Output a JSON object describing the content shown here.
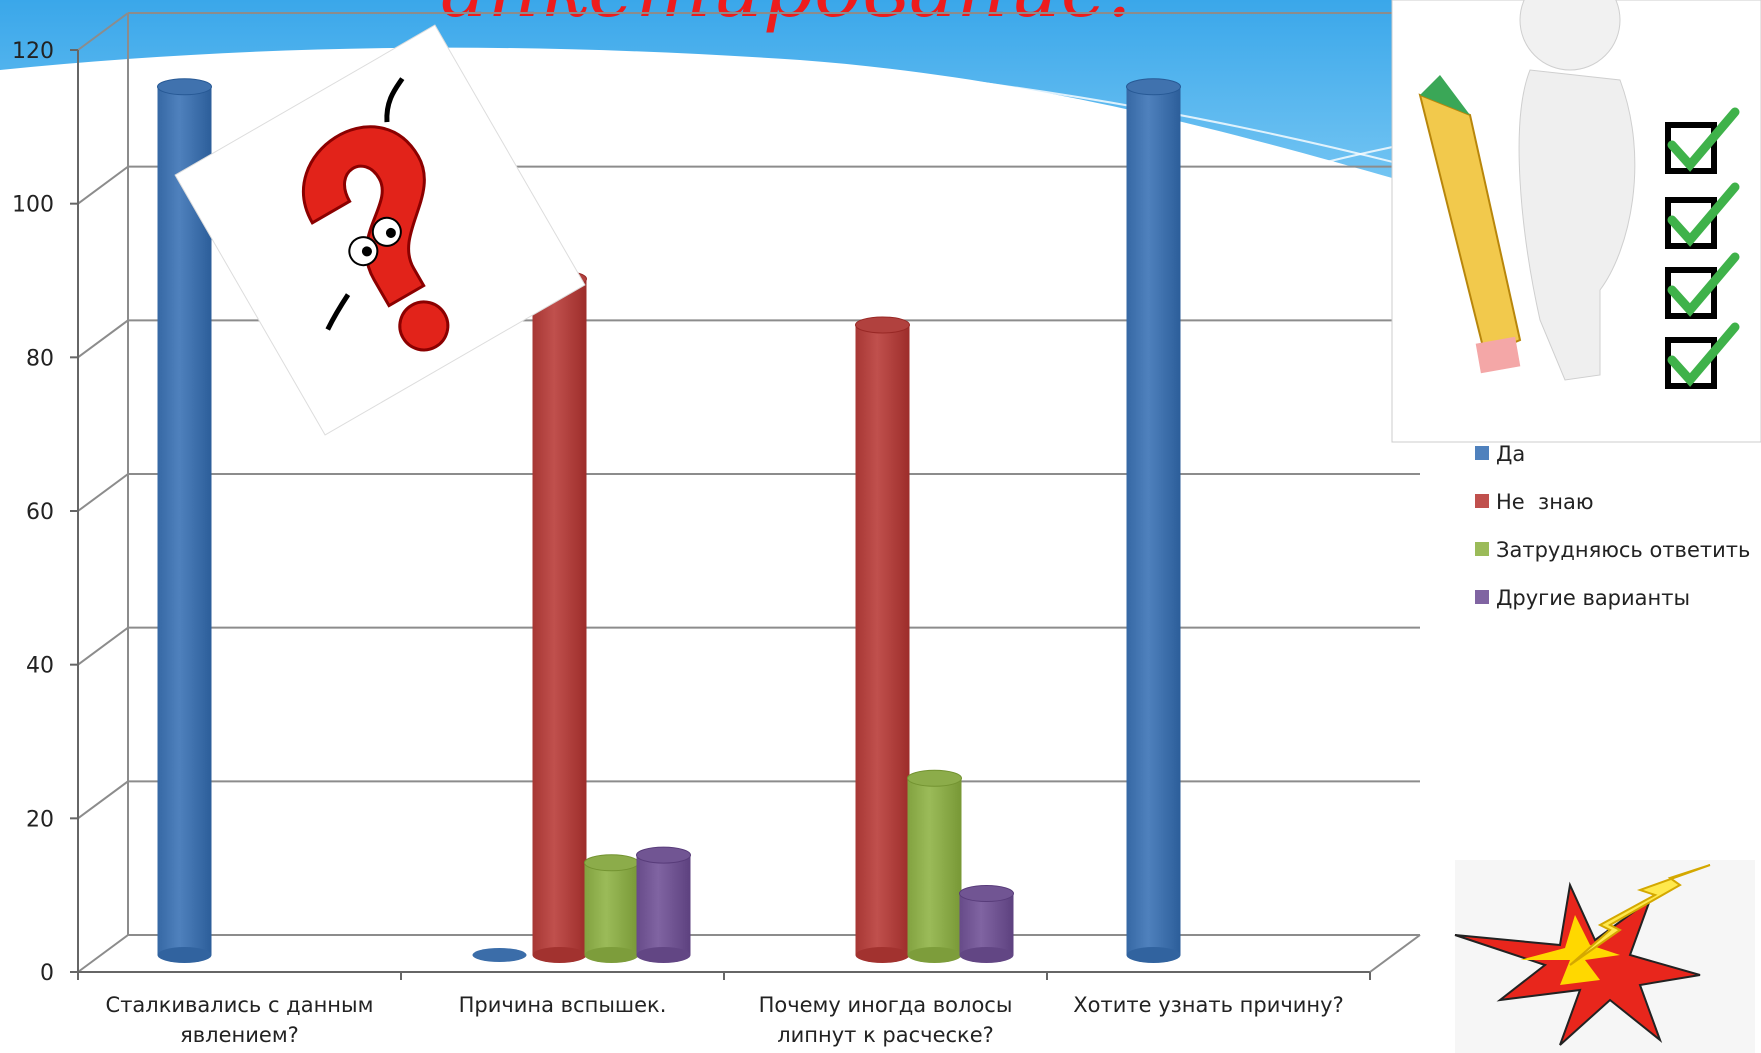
{
  "slide": {
    "title_fragment": "анкетирование:",
    "accent_color": "#ee1c1c",
    "background_wave_color": "#4fb4ee"
  },
  "decorations": {
    "question_mark_icon": "question-mark-character-icon",
    "checklist_figure_icon": "man-with-pencil-and-checklist-icon",
    "lightning_icon": "lightning-explosion-icon"
  },
  "chart_data": {
    "type": "bar",
    "style": "3d-cylinder",
    "categories": [
      [
        "Сталкивались с данным",
        "явлением?"
      ],
      [
        "Причина вспышек."
      ],
      [
        "Почему иногда волосы",
        "липнут к расческе?"
      ],
      [
        "Хотите узнать причину?"
      ]
    ],
    "series": [
      {
        "name": "Да",
        "color": "#4f81bd",
        "values": [
          113,
          0,
          0,
          113
        ]
      },
      {
        "name": "Не  знаю",
        "color": "#c0504d",
        "values": [
          0,
          88,
          82,
          0
        ]
      },
      {
        "name": "Затрудняюсь ответить",
        "color": "#9bbb59",
        "values": [
          0,
          12,
          23,
          0
        ]
      },
      {
        "name": "Другие варианты",
        "color": "#8064a2",
        "values": [
          0,
          13,
          8,
          0
        ]
      }
    ],
    "ylim": [
      0,
      120
    ],
    "yticks": [
      "0",
      "20",
      "40",
      "60",
      "80",
      "100",
      "120"
    ],
    "grid": true,
    "legend_position": "right"
  }
}
